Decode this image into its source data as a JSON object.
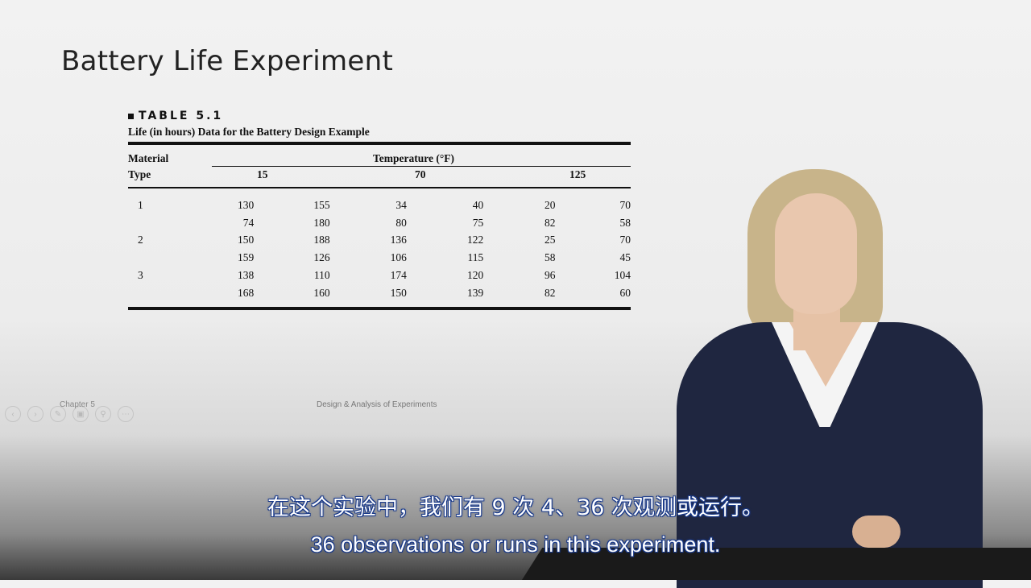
{
  "slide": {
    "title": "Battery Life Experiment",
    "footer_left": "Chapter 5",
    "footer_center": "Design & Analysis of Experiments"
  },
  "table": {
    "label": "TABLE 5.1",
    "caption": "Life (in hours) Data for the Battery Design Example",
    "header_material_1": "Material",
    "header_material_2": "Type",
    "header_temperature": "Temperature (°F)",
    "temperatures": [
      "15",
      "70",
      "125"
    ],
    "rows": [
      {
        "material": "1",
        "values": [
          "130",
          "155",
          "34",
          "40",
          "20",
          "70"
        ]
      },
      {
        "material": "",
        "values": [
          "74",
          "180",
          "80",
          "75",
          "82",
          "58"
        ]
      },
      {
        "material": "2",
        "values": [
          "150",
          "188",
          "136",
          "122",
          "25",
          "70"
        ]
      },
      {
        "material": "",
        "values": [
          "159",
          "126",
          "106",
          "115",
          "58",
          "45"
        ]
      },
      {
        "material": "3",
        "values": [
          "138",
          "110",
          "174",
          "120",
          "96",
          "104"
        ]
      },
      {
        "material": "",
        "values": [
          "168",
          "160",
          "150",
          "139",
          "82",
          "60"
        ]
      }
    ]
  },
  "subtitles": {
    "chinese": "在这个实验中，我们有 9 次 4、36 次观测或运行。",
    "english": "36 observations or runs in this experiment."
  }
}
